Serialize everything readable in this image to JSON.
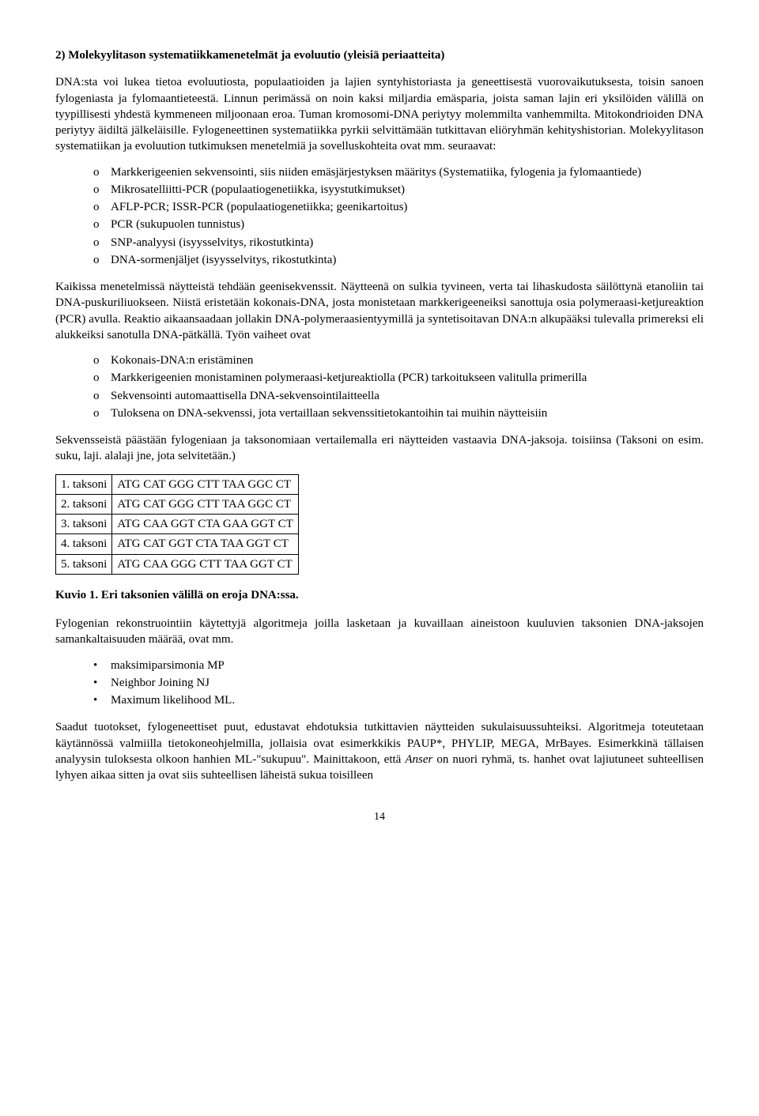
{
  "title": "2) Molekyylitason systematiikkamenetelmät ja evoluutio (yleisiä periaatteita)",
  "intro_para": "DNA:sta voi lukea tietoa evoluutiosta, populaatioiden ja lajien syntyhistoriasta ja geneettisestä vuorovaikutuksesta, toisin sanoen fylogeniasta ja fylomaantieteestä. Linnun perimässä on noin kaksi miljardia emäsparia, joista saman lajin eri yksilöiden välillä on tyypillisesti yhdestä kymmeneen miljoonaan eroa. Tuman kromosomi-DNA periytyy molemmilta vanhemmilta. Mitokondrioiden DNA periytyy äidiltä jälkeläisille. Fylogeneettinen systematiikka pyrkii selvittämään tutkittavan eliöryhmän kehityshistorian. Molekyylitason systematiikan ja evoluution tutkimuksen menetelmiä ja sovelluskohteita ovat mm. seuraavat:",
  "methods_list": [
    "Markkerigeenien sekvensointi, siis niiden emäsjärjestyksen määritys (Systematiika, fylogenia ja fylomaantiede)",
    "Mikrosatelliitti-PCR (populaatiogenetiikka, isyystutkimukset)",
    "AFLP-PCR; ISSR-PCR (populaatiogenetiikka; geenikartoitus)",
    "PCR (sukupuolen tunnistus)",
    "SNP-analyysi  (isyysselvitys, rikostutkinta)",
    "DNA-sormenjäljet (isyysselvitys, rikostutkinta)"
  ],
  "methods_para": "Kaikissa menetelmissä näytteistä tehdään geenisekvenssit. Näytteenä on sulkia tyvineen, verta tai lihaskudosta säilöttynä etanoliin tai DNA-puskuriliuokseen. Niistä eristetään kokonais-DNA, josta monistetaan markkerigeeneiksi sanottuja osia polymeraasi-ketjureaktion (PCR) avulla. Reaktio aikaansaadaan jollakin DNA-polymeraasientyymillä ja syntetisoitavan DNA:n alkupääksi tulevalla primereksi eli alukkeiksi sanotulla DNA-pätkällä. Työn vaiheet ovat",
  "work_steps": [
    "Kokonais-DNA:n eristäminen",
    "Markkerigeenien monistaminen polymeraasi-ketjureaktiolla (PCR) tarkoitukseen valitulla primerilla",
    "Sekvensointi automaattisella DNA-sekvensointilaitteella",
    "Tuloksena on DNA-sekvenssi, jota vertaillaan sekvenssitietokantoihin tai  muihin näytteisiin"
  ],
  "sequences_intro": "Sekvensseistä päästään fylogeniaan ja taksonomiaan vertailemalla eri näytteiden vastaavia DNA-jaksoja. toisiinsa (Taksoni on esim. suku, laji. alalaji jne, jota selvitetään.)",
  "table": {
    "rows": [
      [
        "1. taksoni",
        "ATG CAT GGG CTT TAA GGC CT"
      ],
      [
        "2. taksoni",
        "ATG CAT GGG CTT TAA GGC CT"
      ],
      [
        "3. taksoni",
        "ATG CAA GGT CTA GAA GGT CT"
      ],
      [
        "4. taksoni",
        "ATG CAT GGT CTA TAA GGT CT"
      ],
      [
        "5. taksoni",
        "ATG CAA GGG CTT TAA GGT CT"
      ]
    ],
    "border_color": "#000000"
  },
  "figure_caption": "Kuvio 1. Eri  taksonien välillä on eroja DNA:ssa.",
  "phylogeny_para": "Fylogenian rekonstruointiin käytettyjä algoritmeja joilla lasketaan ja kuvaillaan aineistoon kuuluvien taksonien DNA-jaksojen samankaltaisuuden määrää, ovat mm.",
  "algorithms": [
    "maksimiparsimonia  MP",
    "Neighbor Joining NJ",
    "Maximum likelihood ML."
  ],
  "final_a": "Saadut tuotokset, fylogeneettiset puut, edustavat ehdotuksia tutkittavien näytteiden sukulaisuussuhteiksi. Algoritmeja toteutetaan käytännössä valmiilla tietokoneohjelmilla, jollaisia ovat esimerkkikis PAUP*, PHYLIP, MEGA, MrBayes. Esimerkkinä tällaisen analyysin tuloksesta olkoon hanhien ML-\"sukupuu\". Mainittakoon, että ",
  "final_italic": "Anser",
  "final_b": " on nuori ryhmä, ts. hanhet ovat lajiutuneet suhteellisen lyhyen aikaa sitten ja ovat siis suhteellisen läheistä sukua toisilleen",
  "page_number": "14"
}
